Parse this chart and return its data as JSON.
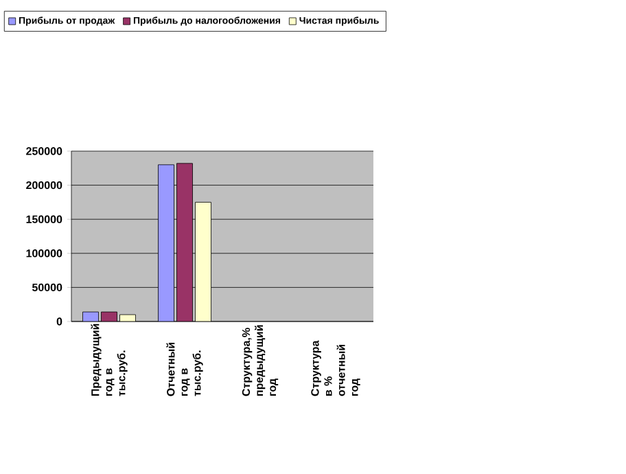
{
  "chart_data": {
    "type": "bar",
    "categories": [
      "Предыдущий год в тыс.руб.",
      "Отчетный год в тыс.руб.",
      "Структура,% предыдущий год",
      "Структура в % отчетный год"
    ],
    "series": [
      {
        "name": "Прибыль от продаж",
        "color": "#9999ff",
        "values": [
          14000,
          230000,
          null,
          null
        ]
      },
      {
        "name": "Прибыль до налогообложения",
        "color": "#993366",
        "values": [
          14000,
          232000,
          null,
          null
        ]
      },
      {
        "name": "Чистая прибыль",
        "color": "#ffffcc",
        "values": [
          10000,
          175000,
          null,
          null
        ]
      }
    ],
    "ylim": [
      0,
      250000
    ],
    "yticks": [
      0,
      50000,
      100000,
      150000,
      200000,
      250000
    ],
    "grid": "y",
    "legend": "top"
  }
}
